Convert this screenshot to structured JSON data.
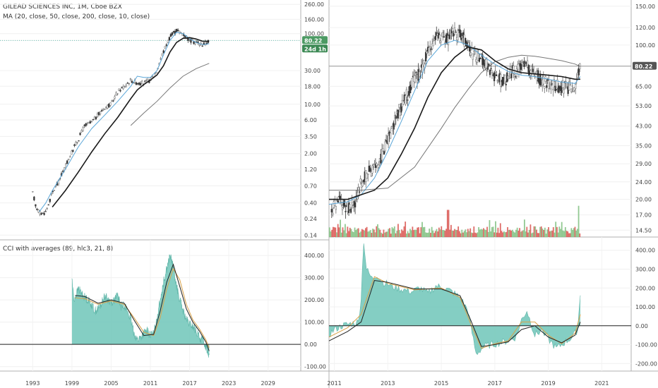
{
  "colors": {
    "ma20": "#5aa6d8",
    "ma50": "#1a1a1a",
    "ma200": "#555555",
    "cci_fill": "#6fc6b8",
    "cci_ma21": "#222222",
    "cci_ma8": "#d9a24a",
    "up": "#7fbf7f",
    "down": "#d9534f",
    "price_badge": "#4c9a63",
    "countdown_badge": "#3d8a55",
    "last_line": "#6fc6b8"
  },
  "chart_data": [
    {
      "type": "line",
      "panel": "left-price",
      "title": "GILEAD SCIENCES INC, 1M, Cboe BZX",
      "indicator_label": "MA (20, close, 50, close, 200, close, 10, close)",
      "yscale": "log",
      "y_ticks": [
        "260.00",
        "160.00",
        "100.00",
        "80.22",
        "30.00",
        "18.00",
        "10.00",
        "6.00",
        "3.50",
        "2.00",
        "1.20",
        "0.70",
        "0.40",
        "0.24",
        "0.14"
      ],
      "y_tick_values": [
        260,
        160,
        100,
        80.22,
        30,
        18,
        10,
        6,
        3.5,
        2,
        1.2,
        0.7,
        0.4,
        0.24,
        0.14
      ],
      "xlim": [
        1988,
        2034
      ],
      "last_price": "80.22",
      "countdown": "24d 1h",
      "series": [
        {
          "name": "MA 20",
          "x": [
            1994,
            1995,
            1996,
            1998,
            2000,
            2002,
            2004,
            2006,
            2008,
            2009,
            2010,
            2011,
            2012,
            2013,
            2014,
            2015,
            2016,
            2017,
            2018,
            2019,
            2020
          ],
          "y": [
            0.3,
            0.4,
            0.6,
            1.2,
            2.5,
            4.5,
            7,
            11,
            18,
            25,
            24,
            24,
            30,
            50,
            80,
            105,
            100,
            85,
            75,
            70,
            72
          ]
        },
        {
          "name": "MA 50",
          "x": [
            1996,
            1998,
            2000,
            2002,
            2004,
            2006,
            2008,
            2009,
            2010,
            2011,
            2012,
            2013,
            2014,
            2015,
            2016,
            2017,
            2018,
            2019,
            2020
          ],
          "y": [
            0.35,
            0.6,
            1.1,
            2.1,
            3.8,
            6.5,
            12,
            16,
            19,
            22,
            26,
            35,
            55,
            75,
            86,
            88,
            84,
            78,
            78
          ]
        },
        {
          "name": "MA 200",
          "x": [
            2008,
            2010,
            2012,
            2014,
            2016,
            2018,
            2020
          ],
          "y": [
            5.0,
            7.5,
            11,
            17,
            25,
            32,
            38
          ]
        }
      ],
      "candles_close": {
        "x": [
          1993.0,
          1993.5,
          1994.0,
          1994.5,
          1995.0,
          1995.5,
          1996.0,
          1997.0,
          1998.0,
          1999.0,
          2000.0,
          2001.0,
          2002.0,
          2003.0,
          2004.0,
          2005.0,
          2006.0,
          2007.0,
          2008.0,
          2009.0,
          2010.0,
          2011.0,
          2012.0,
          2013.0,
          2014.0,
          2015.0,
          2016.0,
          2017.0,
          2018.0,
          2019.0,
          2020.0
        ],
        "y": [
          0.55,
          0.35,
          0.3,
          0.28,
          0.3,
          0.4,
          0.55,
          0.8,
          1.3,
          2.1,
          3.2,
          5,
          5.5,
          7,
          9,
          10,
          15,
          18,
          22,
          20,
          20,
          22,
          30,
          55,
          90,
          110,
          100,
          80,
          75,
          70,
          80
        ]
      }
    },
    {
      "type": "line",
      "panel": "right-price",
      "yscale": "log",
      "y_ticks": [
        "150.00",
        "120.00",
        "100.00",
        "80.22",
        "65.00",
        "53.00",
        "43.00",
        "35.00",
        "29.00",
        "24.00",
        "20.00",
        "17.00",
        "14.50"
      ],
      "y_tick_values": [
        150,
        120,
        100,
        80.22,
        65,
        53,
        43,
        35,
        29,
        24,
        20,
        17,
        14.5
      ],
      "xlim": [
        2010.8,
        2022.1
      ],
      "last_price": "80.22",
      "series": [
        {
          "name": "MA 20",
          "x": [
            2010.8,
            2011.5,
            2012.0,
            2012.5,
            2013.0,
            2013.5,
            2014.0,
            2014.5,
            2015.0,
            2015.5,
            2016.0,
            2016.5,
            2017.0,
            2017.5,
            2018.0,
            2018.5,
            2019.0,
            2019.5,
            2020.0,
            2020.2
          ],
          "y": [
            19,
            19.5,
            21,
            25,
            33,
            45,
            62,
            85,
            100,
            105,
            100,
            90,
            82,
            76,
            73,
            72,
            70,
            68,
            67,
            72
          ]
        },
        {
          "name": "MA 50",
          "x": [
            2010.8,
            2011.5,
            2012.0,
            2012.5,
            2013.0,
            2013.5,
            2014.0,
            2014.5,
            2015.0,
            2015.5,
            2016.0,
            2016.5,
            2017.0,
            2017.5,
            2018.0,
            2018.5,
            2019.0,
            2019.5,
            2020.0,
            2020.2
          ],
          "y": [
            20,
            20,
            21,
            22,
            25,
            32,
            42,
            58,
            75,
            88,
            98,
            95,
            85,
            78,
            75,
            74,
            73,
            72,
            70,
            70
          ]
        },
        {
          "name": "MA 200",
          "x": [
            2010.8,
            2012.0,
            2013.0,
            2014.0,
            2015.0,
            2015.5,
            2016.0,
            2016.5,
            2017.0,
            2017.5,
            2018.0,
            2018.5,
            2019.0,
            2019.5,
            2020.0,
            2020.2
          ],
          "y": [
            22,
            22,
            22.5,
            28,
            42,
            52,
            63,
            75,
            84,
            88,
            90,
            89,
            87,
            85,
            82,
            80
          ]
        }
      ],
      "candles_close": {
        "x": [
          2010.9,
          2011.2,
          2011.5,
          2011.8,
          2012.0,
          2012.3,
          2012.6,
          2013.0,
          2013.3,
          2013.6,
          2014.0,
          2014.3,
          2014.6,
          2014.9,
          2015.2,
          2015.5,
          2015.8,
          2016.1,
          2016.4,
          2016.7,
          2017.0,
          2017.3,
          2017.6,
          2017.9,
          2018.2,
          2018.5,
          2018.8,
          2019.1,
          2019.4,
          2019.7,
          2020.0,
          2020.2
        ],
        "y": [
          18,
          19.5,
          18.5,
          19,
          24,
          27,
          28,
          37,
          47,
          55,
          70,
          78,
          100,
          110,
          105,
          115,
          108,
          92,
          88,
          82,
          72,
          68,
          75,
          78,
          80,
          76,
          68,
          67,
          65,
          64,
          66,
          80
        ]
      },
      "volume": {
        "note": "volume histogram",
        "x_range": [
          2010.8,
          2020.2
        ],
        "spikes": [
          {
            "x": 2015.25,
            "v": 1.0
          },
          {
            "x": 2020.15,
            "v": 1.15
          }
        ]
      }
    },
    {
      "type": "area",
      "panel": "left-cci",
      "title": "CCI with averages (89, hlc3, 21, 8)",
      "y_ticks": [
        "400.00",
        "300.00",
        "200.00",
        "100.00",
        "0.00",
        "-100.00"
      ],
      "y_tick_values": [
        400,
        300,
        200,
        100,
        0,
        -100
      ],
      "xlim": [
        1988,
        2034
      ],
      "x_ticks": [
        "1993",
        "1999",
        "2005",
        "2011",
        "2017",
        "2023",
        "2029"
      ],
      "x_tick_values": [
        1993,
        1999,
        2005,
        2011,
        2017,
        2023,
        2029
      ],
      "series": [
        {
          "name": "CCI",
          "x": [
            1999.0,
            1999.3,
            1999.6,
            2000.0,
            2000.5,
            2001.0,
            2001.5,
            2002.0,
            2002.5,
            2003.0,
            2003.5,
            2004.0,
            2004.5,
            2005.0,
            2005.5,
            2006.0,
            2006.5,
            2007.0,
            2007.5,
            2008.0,
            2008.5,
            2009.0,
            2009.5,
            2010.0,
            2010.5,
            2011.0,
            2011.5,
            2012.0,
            2012.5,
            2013.0,
            2013.5,
            2014.0,
            2014.5,
            2015.0,
            2015.5,
            2016.0,
            2016.5,
            2017.0,
            2017.5,
            2018.0,
            2018.5,
            2019.0,
            2019.5,
            2020.0
          ],
          "y": [
            300,
            200,
            220,
            250,
            230,
            210,
            200,
            180,
            150,
            160,
            180,
            220,
            200,
            190,
            200,
            220,
            170,
            180,
            150,
            110,
            50,
            20,
            30,
            50,
            60,
            40,
            50,
            120,
            200,
            280,
            340,
            400,
            350,
            260,
            200,
            150,
            110,
            90,
            80,
            60,
            30,
            20,
            -10,
            -50
          ]
        },
        {
          "name": "MA 21",
          "x": [
            1999.5,
            2001.0,
            2003.0,
            2005.0,
            2007.0,
            2008.5,
            2010.0,
            2011.5,
            2012.5,
            2013.5,
            2014.5,
            2015.5,
            2016.5,
            2017.5,
            2018.5,
            2019.5,
            2020.0
          ],
          "y": [
            220,
            215,
            185,
            200,
            185,
            110,
            40,
            45,
            150,
            280,
            360,
            260,
            160,
            100,
            60,
            10,
            -30
          ]
        },
        {
          "name": "MA 8",
          "x": [
            1999.5,
            2001.0,
            2003.0,
            2005.0,
            2007.0,
            2008.5,
            2010.0,
            2011.5,
            2012.5,
            2013.5,
            2014.5,
            2015.5,
            2016.5,
            2017.5,
            2018.5,
            2019.5,
            2020.0
          ],
          "y": [
            210,
            205,
            180,
            195,
            180,
            120,
            55,
            40,
            120,
            250,
            340,
            290,
            180,
            110,
            70,
            20,
            -15
          ]
        }
      ]
    },
    {
      "type": "area",
      "panel": "right-cci",
      "y_ticks": [
        "400.00",
        "300.00",
        "200.00",
        "100.00",
        "0.00",
        "-100.00",
        "-200.00"
      ],
      "y_tick_values": [
        400,
        300,
        200,
        100,
        0,
        -100,
        -200
      ],
      "xlim": [
        2010.8,
        2022.1
      ],
      "x_ticks": [
        "2011",
        "2013",
        "2015",
        "2017",
        "2019",
        "2021"
      ],
      "x_tick_values": [
        2011,
        2013,
        2015,
        2017,
        2019,
        2021
      ],
      "series": [
        {
          "name": "CCI",
          "x": [
            2010.8,
            2011.0,
            2011.3,
            2011.6,
            2011.9,
            2012.0,
            2012.1,
            2012.2,
            2012.4,
            2012.6,
            2012.8,
            2013.0,
            2013.3,
            2013.6,
            2013.9,
            2014.2,
            2014.5,
            2014.8,
            2015.1,
            2015.4,
            2015.7,
            2016.0,
            2016.1,
            2016.3,
            2016.6,
            2016.9,
            2017.2,
            2017.5,
            2017.8,
            2018.0,
            2018.2,
            2018.5,
            2018.8,
            2019.0,
            2019.3,
            2019.6,
            2019.9,
            2020.1,
            2020.2
          ],
          "y": [
            -50,
            -20,
            0,
            10,
            20,
            150,
            450,
            300,
            250,
            270,
            230,
            220,
            200,
            190,
            180,
            200,
            170,
            210,
            200,
            180,
            150,
            80,
            0,
            -150,
            -110,
            -100,
            -90,
            -80,
            -60,
            30,
            80,
            -50,
            -20,
            -70,
            -120,
            -90,
            -60,
            -20,
            170
          ]
        },
        {
          "name": "MA 21",
          "x": [
            2010.8,
            2011.5,
            2012.0,
            2012.5,
            2013.0,
            2014.0,
            2015.0,
            2015.7,
            2016.1,
            2016.5,
            2017.0,
            2017.5,
            2018.0,
            2018.5,
            2019.0,
            2019.5,
            2020.0,
            2020.2
          ],
          "y": [
            -80,
            -30,
            20,
            240,
            230,
            195,
            195,
            160,
            30,
            -110,
            -100,
            -85,
            -20,
            0,
            -60,
            -90,
            -50,
            20
          ]
        },
        {
          "name": "MA 8",
          "x": [
            2010.8,
            2011.5,
            2012.0,
            2012.5,
            2013.0,
            2014.0,
            2015.0,
            2015.7,
            2016.1,
            2016.5,
            2017.0,
            2017.5,
            2018.0,
            2018.5,
            2019.0,
            2019.5,
            2020.0,
            2020.2
          ],
          "y": [
            -60,
            -10,
            60,
            260,
            225,
            190,
            200,
            150,
            10,
            -120,
            -95,
            -80,
            20,
            20,
            -50,
            -95,
            -40,
            60
          ]
        }
      ]
    }
  ]
}
